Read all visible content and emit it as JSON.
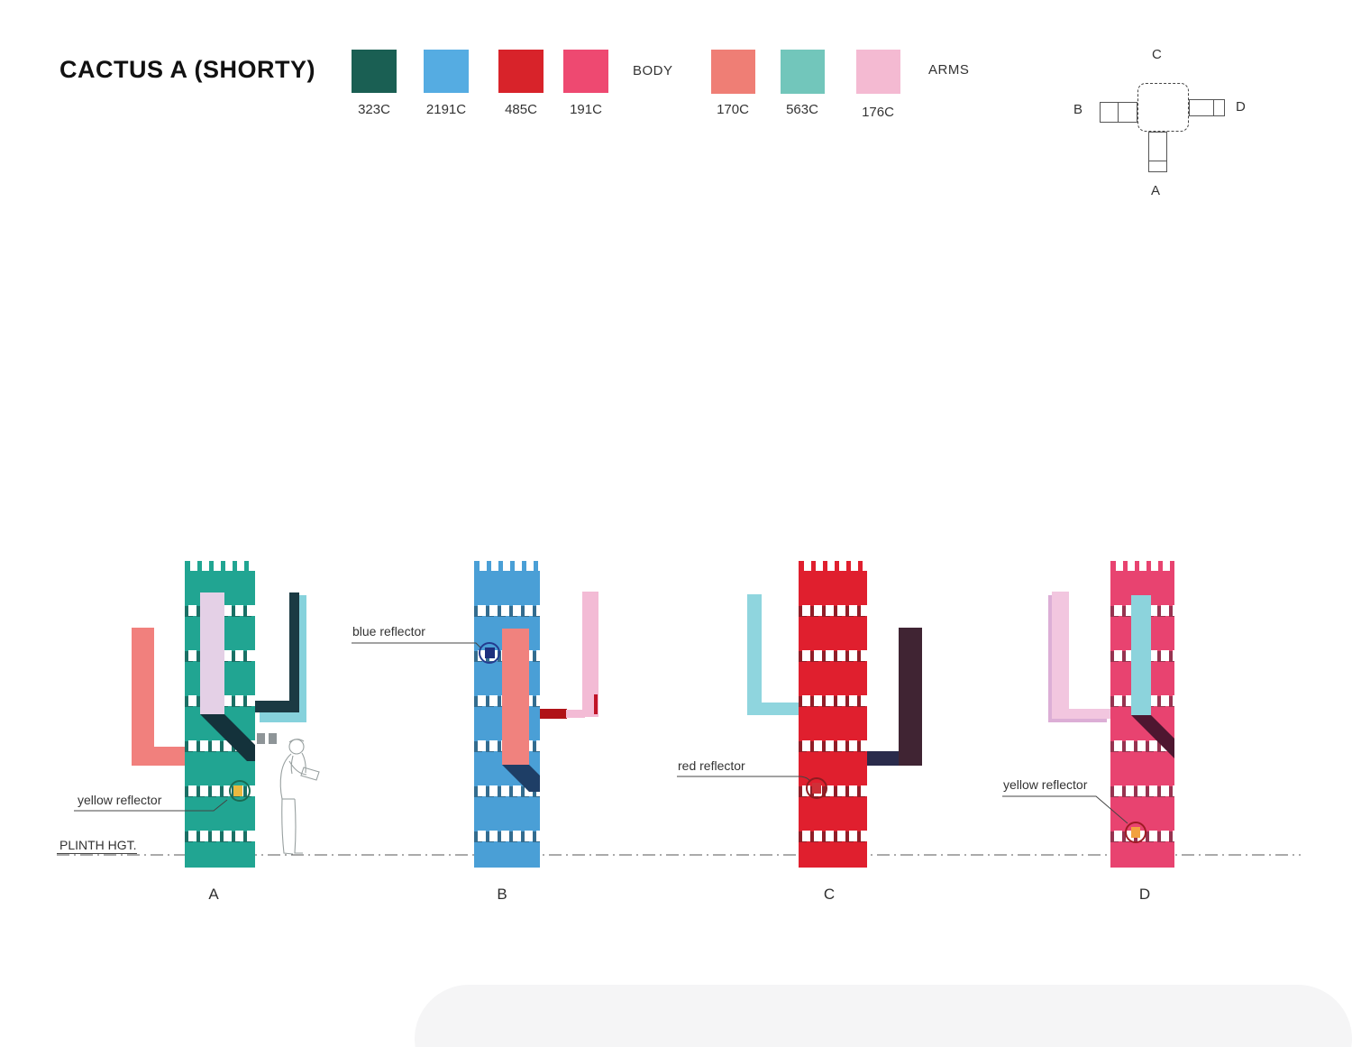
{
  "title": "CACTUS A (SHORTY)",
  "palette": {
    "body_label": "BODY",
    "arms_label": "ARMS",
    "body": [
      {
        "code": "323C",
        "hex": "#1A5F53"
      },
      {
        "code": "2191C",
        "hex": "#55ACE2"
      },
      {
        "code": "485C",
        "hex": "#D8232A"
      },
      {
        "code": "191C",
        "hex": "#EE4971"
      }
    ],
    "arms": [
      {
        "code": "170C",
        "hex": "#EF7E75"
      },
      {
        "code": "563C",
        "hex": "#72C6BB"
      },
      {
        "code": "176C",
        "hex": "#F4BAD2"
      }
    ]
  },
  "plan": {
    "top": "C",
    "left": "B",
    "right": "D",
    "bottom": "A"
  },
  "plinth_label": "PLINTH HGT.",
  "views": [
    {
      "label": "A",
      "annotation": "yellow reflector",
      "colors": {
        "body": "#21A592",
        "center": "#E4D0E6",
        "shadow": "#14323B",
        "arm_left": "#F1807D",
        "arm_right_front": "#1B3A43",
        "arm_right_back": "#86D2DC",
        "reflector": "#E9B93F",
        "ring": "#1A6B52"
      }
    },
    {
      "label": "B",
      "annotation": "blue reflector",
      "colors": {
        "body": "#4A9FD6",
        "center": "#F0827E",
        "shadow": "#1E3E66",
        "arm_pink": "#F3BBD5",
        "arm_stub": "#B01217",
        "arm_accent": "#C01428",
        "reflector": "#1E2F7D",
        "ring": "#243B8F"
      }
    },
    {
      "label": "C",
      "annotation": "red reflector",
      "colors": {
        "body": "#E01F2E",
        "arm_left": "#8FD5DE",
        "arm_right_front": "#402433",
        "arm_right_back": "#2A2B4B",
        "reflector": "#CF3038",
        "ring": "#8E1B20"
      }
    },
    {
      "label": "D",
      "annotation": "yellow reflector",
      "colors": {
        "body": "#E84370",
        "center": "#8CD3DC",
        "shadow": "#4E1630",
        "arm_left_front": "#F2C6DF",
        "arm_left_back": "#DCAED6",
        "reflector": "#F2A141",
        "ring": "#9E1B24"
      }
    }
  ]
}
